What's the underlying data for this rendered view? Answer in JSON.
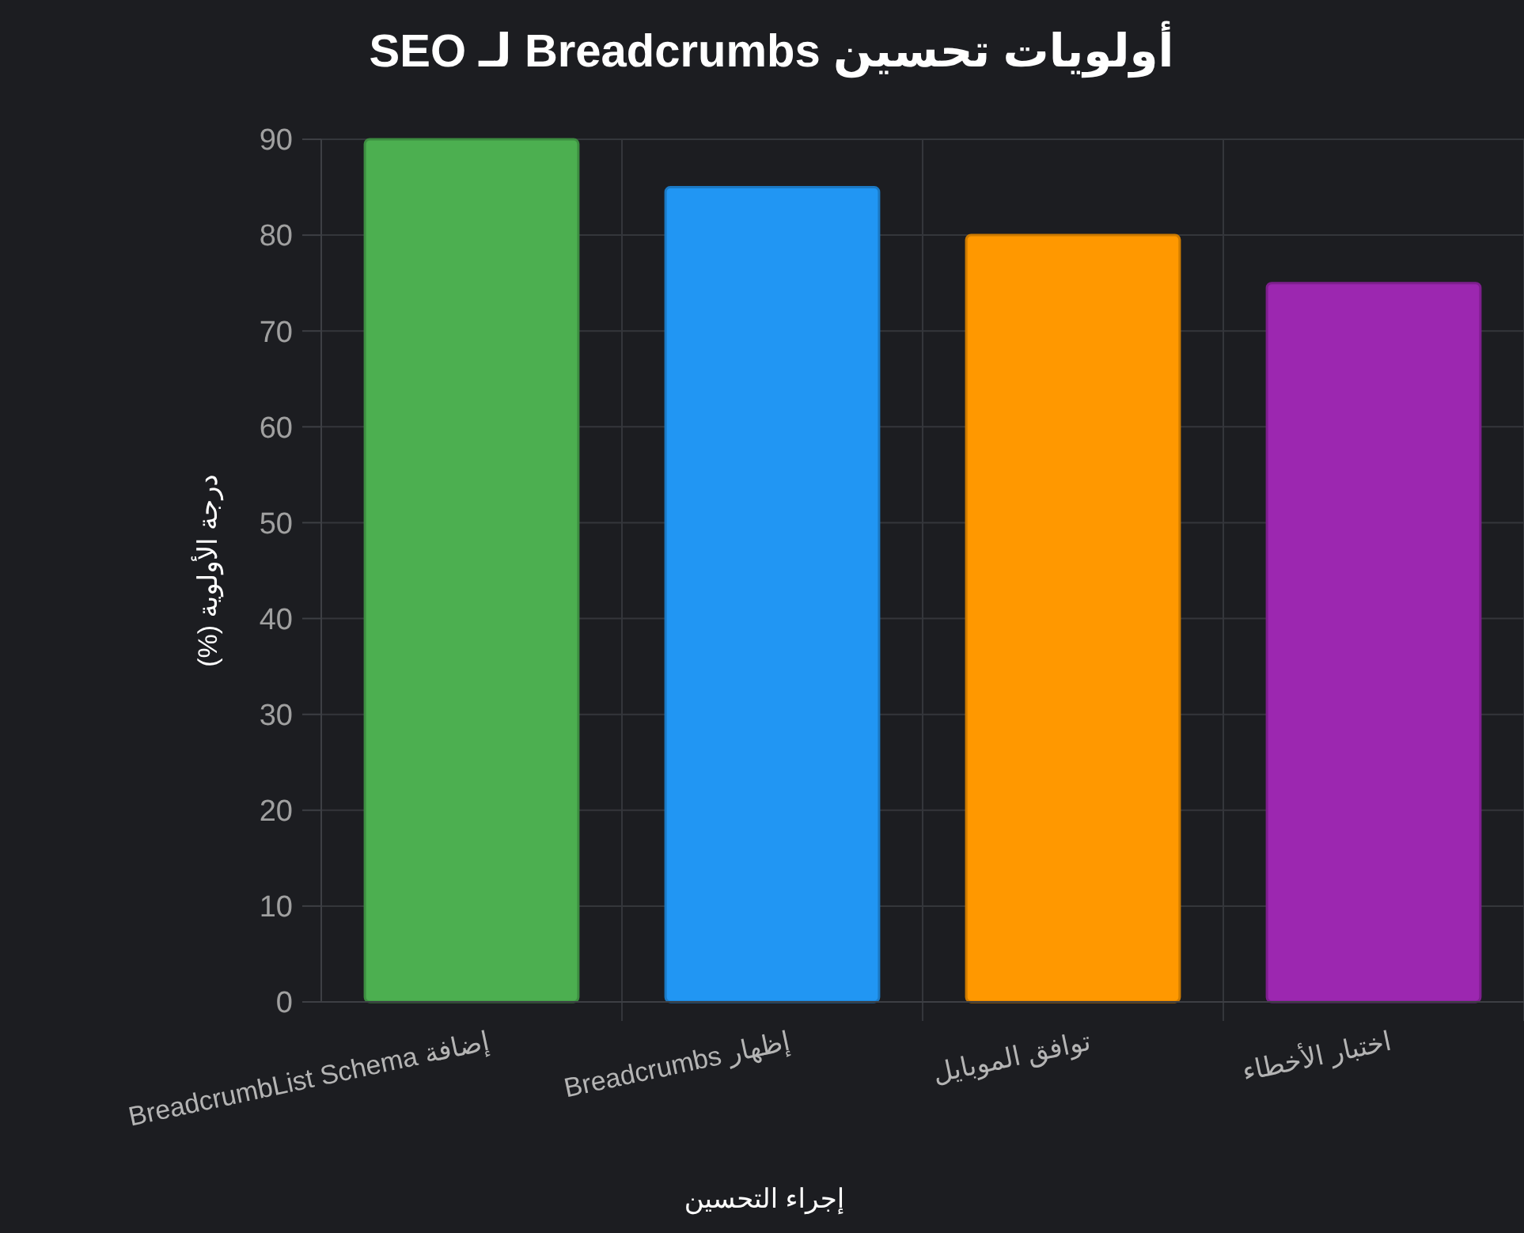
{
  "chart_data": {
    "type": "bar",
    "title": "أولويات تحسين Breadcrumbs لـ SEO",
    "xlabel": "إجراء التحسين",
    "ylabel": "درجة الأولوية (%)",
    "categories": [
      "إضافة BreadcrumbList Schema",
      "إظهار Breadcrumbs",
      "توافق الموبايل",
      "اختبار الأخطاء"
    ],
    "values": [
      90,
      85,
      80,
      75
    ],
    "colors": [
      "#4caf50",
      "#2196f3",
      "#ff9800",
      "#9c27b0"
    ],
    "ylim": [
      0,
      90
    ],
    "yticks": [
      0,
      10,
      20,
      30,
      40,
      50,
      60,
      70,
      80,
      90
    ],
    "grid": true
  }
}
